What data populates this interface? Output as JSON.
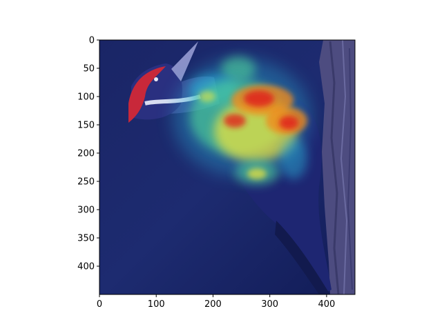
{
  "axes": {
    "x_ticks": [
      "0",
      "100",
      "200",
      "300",
      "400"
    ],
    "y_ticks": [
      "0",
      "50",
      "100",
      "150",
      "200",
      "250",
      "300",
      "350",
      "400"
    ]
  },
  "image": {
    "subject": "woodpecker-attention-heatmap",
    "colors": {
      "background_navy": "#1c2a6e",
      "deep_blue": "#101a52",
      "crest_red": "#c8283a",
      "bark": "#5c5a8c",
      "heat_red": "#e0241c",
      "heat_orange": "#f08a1a",
      "heat_yellow": "#f2e63a",
      "heat_green": "#4fd39a",
      "heat_cyan": "#2cb6d9"
    }
  }
}
